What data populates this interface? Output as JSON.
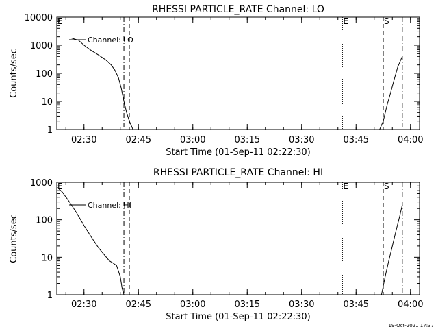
{
  "chart_data": [
    {
      "type": "line",
      "title": "RHESSI PARTICLE_RATE Channel: LO",
      "xlabel": "Start Time (01-Sep-11 02:22:30)",
      "ylabel": "Counts/sec",
      "y_scale": "log",
      "xlim": [
        "02:22:30",
        "04:02:30"
      ],
      "ylim": [
        1,
        10000
      ],
      "x_ticks": [
        "02:30",
        "02:45",
        "03:00",
        "03:15",
        "03:30",
        "03:45",
        "04:00"
      ],
      "y_ticks": [
        "1",
        "10",
        "100",
        "1000",
        "10000"
      ],
      "legend": "Channel: LO",
      "markers": [
        {
          "label": "E",
          "time": "02:22:30",
          "style": "solid"
        },
        {
          "label": "",
          "time": "02:41:00",
          "style": "dashdot"
        },
        {
          "label": "",
          "time": "02:42:30",
          "style": "dashed"
        },
        {
          "label": "E",
          "time": "03:41:15",
          "style": "dotted"
        },
        {
          "label": "S",
          "time": "03:52:30",
          "style": "dashed"
        },
        {
          "label": "",
          "time": "03:57:45",
          "style": "dashdot"
        }
      ],
      "segments": [
        {
          "x": [
            "02:22:30",
            "02:26:30",
            "02:28:30",
            "02:30:00",
            "02:32:00",
            "02:34:00",
            "02:36:00",
            "02:37:30",
            "02:38:30",
            "02:39:30",
            "02:40:15",
            "02:41:00",
            "02:41:45",
            "02:42:30",
            "02:43:30"
          ],
          "y": [
            1800,
            1800,
            1500,
            1000,
            650,
            450,
            300,
            200,
            130,
            70,
            30,
            10,
            4,
            2,
            1
          ]
        },
        {
          "x": [
            "03:51:30",
            "03:52:30",
            "03:53:30",
            "03:54:30",
            "03:55:30",
            "03:56:30",
            "03:57:45"
          ],
          "y": [
            1,
            2,
            7,
            20,
            60,
            170,
            400
          ]
        }
      ]
    },
    {
      "type": "line",
      "title": "RHESSI PARTICLE_RATE Channel: HI",
      "xlabel": "Start Time (01-Sep-11 02:22:30)",
      "ylabel": "Counts/sec",
      "y_scale": "log",
      "xlim": [
        "02:22:30",
        "04:02:30"
      ],
      "ylim": [
        1,
        1000
      ],
      "x_ticks": [
        "02:30",
        "02:45",
        "03:00",
        "03:15",
        "03:30",
        "03:45",
        "04:00"
      ],
      "y_ticks": [
        "1",
        "10",
        "100",
        "1000"
      ],
      "legend": "Channel: HI",
      "markers": [
        {
          "label": "E",
          "time": "02:22:30",
          "style": "solid"
        },
        {
          "label": "",
          "time": "02:41:00",
          "style": "dashdot"
        },
        {
          "label": "",
          "time": "02:42:30",
          "style": "dashed"
        },
        {
          "label": "E",
          "time": "03:41:15",
          "style": "dotted"
        },
        {
          "label": "S",
          "time": "03:52:30",
          "style": "dashed"
        },
        {
          "label": "",
          "time": "03:57:45",
          "style": "dashdot"
        }
      ],
      "segments": [
        {
          "x": [
            "02:22:30",
            "02:24:00",
            "02:26:00",
            "02:28:00",
            "02:30:00",
            "02:32:00",
            "02:34:00",
            "02:35:30",
            "02:37:00",
            "02:38:00",
            "02:39:00",
            "02:40:00",
            "02:40:30",
            "02:41:00"
          ],
          "y": [
            750,
            550,
            300,
            150,
            70,
            35,
            18,
            12,
            8,
            7,
            6,
            3,
            1.5,
            1
          ]
        },
        {
          "x": [
            "03:52:00",
            "03:53:00",
            "03:54:00",
            "03:55:00",
            "03:56:00",
            "03:57:00",
            "03:57:45"
          ],
          "y": [
            1,
            3,
            8,
            20,
            50,
            120,
            250
          ]
        }
      ]
    }
  ],
  "footer": {
    "timestamp": "19-Oct-2021 17:37"
  }
}
